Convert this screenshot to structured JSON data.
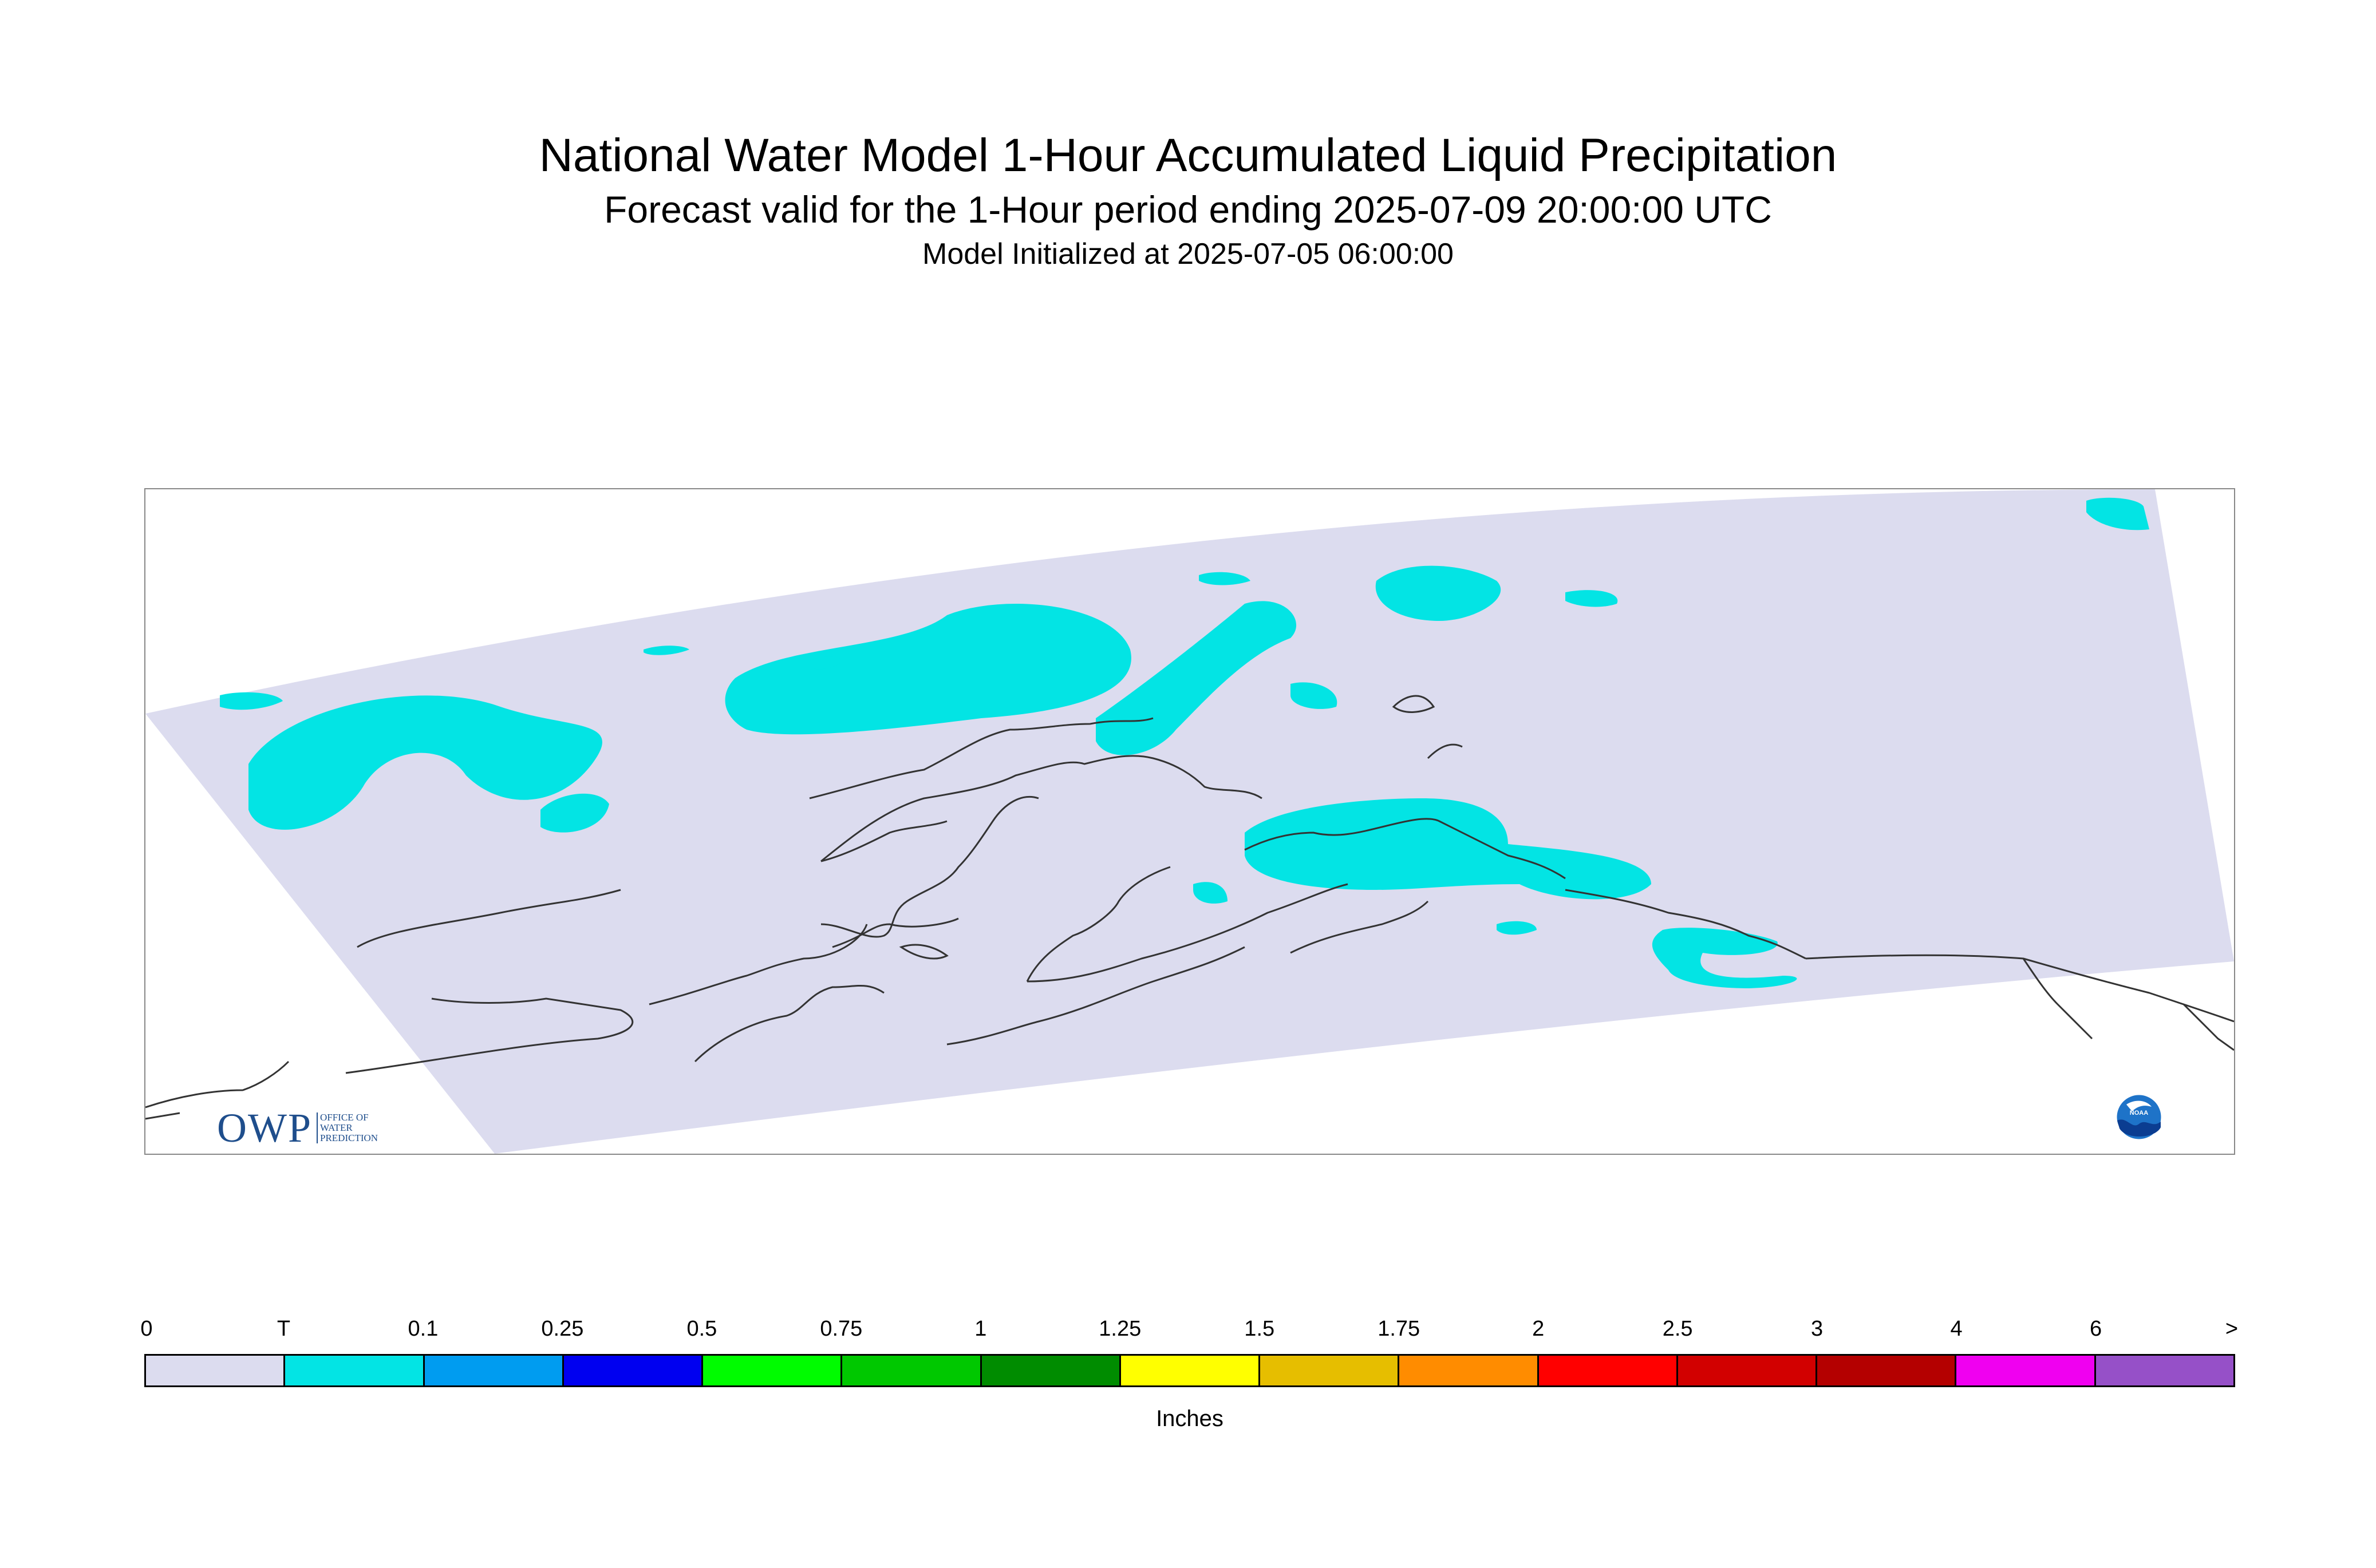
{
  "titles": {
    "main": "National Water Model 1-Hour Accumulated Liquid Precipitation",
    "subtitle": "Forecast valid for the 1-Hour period ending 2025-07-09 20:00:00 UTC",
    "initialized": "Model Initialized at 2025-07-05 06:00:00"
  },
  "map": {
    "domain_fill_color": "#dcdcef",
    "precip_fill_color": "#03e4e4",
    "coastline_color": "#333333",
    "frame_color": "#888888"
  },
  "logos": {
    "owp": {
      "mark": "OWP",
      "text_line1": "OFFICE OF",
      "text_line2": "WATER",
      "text_line3": "PREDICTION",
      "icon": "owp-logo-icon"
    },
    "noaa": {
      "text": "NOAA",
      "icon": "noaa-logo-icon"
    }
  },
  "legend": {
    "tick_labels": [
      "0",
      "T",
      "0.1",
      "0.25",
      "0.5",
      "0.75",
      "1",
      "1.25",
      "1.5",
      "1.75",
      "2",
      "2.5",
      "3",
      "4",
      "6",
      ">"
    ],
    "colors": [
      "#dcdcef",
      "#03e4e4",
      "#009cf0",
      "#0000f0",
      "#00fc00",
      "#00c800",
      "#008c00",
      "#ffff00",
      "#e6be00",
      "#ff8c00",
      "#ff0000",
      "#d20000",
      "#b40000",
      "#f000f0",
      "#9650c8"
    ],
    "units": "Inches"
  }
}
